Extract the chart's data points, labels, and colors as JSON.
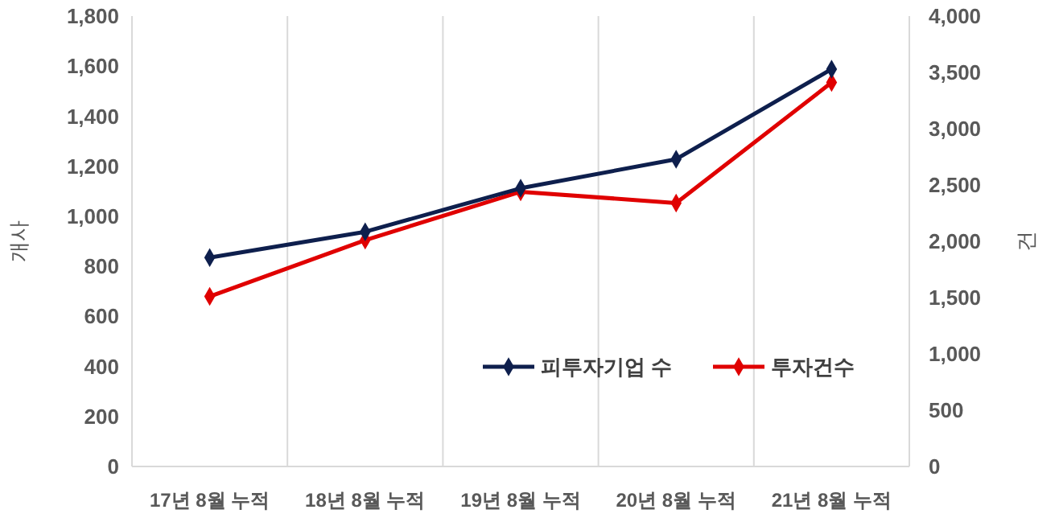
{
  "chart_data": {
    "type": "line",
    "categories": [
      "17년 8월 누적",
      "18년 8월 누적",
      "19년 8월 누적",
      "20년 8월 누적",
      "21년 8월 누적"
    ],
    "series": [
      {
        "name": "피투자기업 수",
        "color": "#0e1f4d",
        "values": [
          835,
          938,
          1112,
          1228,
          1588
        ]
      },
      {
        "name": "투자건수",
        "color": "#e00000",
        "axis": "y2",
        "values": [
          1510,
          2010,
          2440,
          2340,
          3410
        ]
      }
    ],
    "ylabel": "개사",
    "y2label": "건",
    "ylim": [
      0,
      1800
    ],
    "yticks": [
      {
        "value": 0,
        "label": "0"
      },
      {
        "value": 200,
        "label": "200"
      },
      {
        "value": 400,
        "label": "400"
      },
      {
        "value": 600,
        "label": "600"
      },
      {
        "value": 800,
        "label": "800"
      },
      {
        "value": 1000,
        "label": "1,000"
      },
      {
        "value": 1200,
        "label": "1,200"
      },
      {
        "value": 1400,
        "label": "1,400"
      },
      {
        "value": 1600,
        "label": "1,600"
      },
      {
        "value": 1800,
        "label": "1,800"
      }
    ],
    "y2lim": [
      0,
      4000
    ],
    "y2ticks": [
      {
        "value": 0,
        "label": "0"
      },
      {
        "value": 500,
        "label": "500"
      },
      {
        "value": 1000,
        "label": "1,000"
      },
      {
        "value": 1500,
        "label": "1,500"
      },
      {
        "value": 2000,
        "label": "2,000"
      },
      {
        "value": 2500,
        "label": "2,500"
      },
      {
        "value": 3000,
        "label": "3,000"
      },
      {
        "value": 3500,
        "label": "3,500"
      },
      {
        "value": 4000,
        "label": "4,000"
      }
    ],
    "grid": "x",
    "legend": "right",
    "marker": "diamond",
    "line_style": "solid"
  }
}
